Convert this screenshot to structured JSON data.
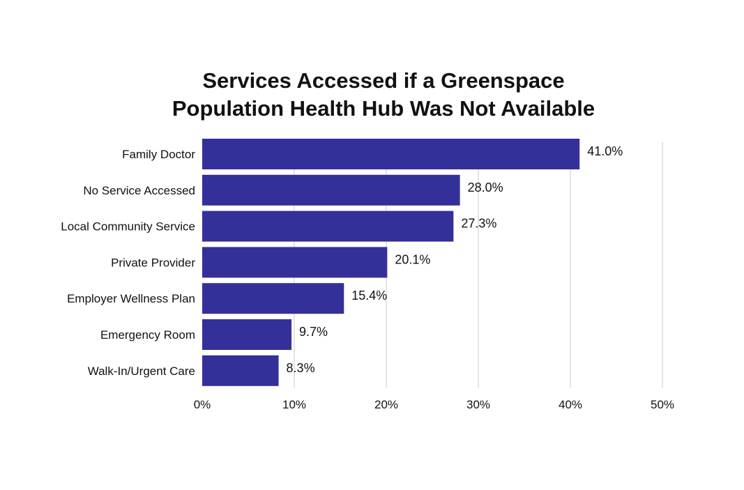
{
  "chart_data": {
    "type": "bar",
    "orientation": "horizontal",
    "title_lines": [
      "Services Accessed if a Greenspace",
      "Population Health Hub Was Not Available"
    ],
    "categories": [
      "Family Doctor",
      "No Service Accessed",
      "Local Community Service",
      "Private Provider",
      "Employer Wellness Plan",
      "Emergency Room",
      "Walk-In/Urgent Care"
    ],
    "values": [
      41.0,
      28.0,
      27.3,
      20.1,
      15.4,
      9.7,
      8.3
    ],
    "value_labels": [
      "41.0%",
      "28.0%",
      "27.3%",
      "20.1%",
      "15.4%",
      "9.7%",
      "8.3%"
    ],
    "xticks": [
      0,
      10,
      20,
      30,
      40,
      50
    ],
    "xtick_labels": [
      "0%",
      "10%",
      "20%",
      "30%",
      "40%",
      "50%"
    ],
    "xlim": [
      0,
      50
    ],
    "xlabel": "",
    "ylabel": "",
    "grid": true,
    "bar_color": "#33309a",
    "grid_color": "#dcdcdc"
  }
}
